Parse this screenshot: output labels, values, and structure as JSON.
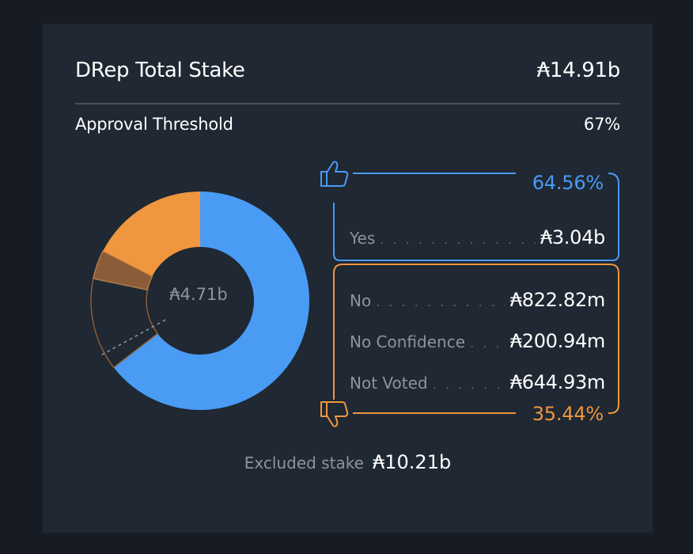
{
  "card": {
    "title": "DRep Total Stake",
    "total_stake": "₳14.91b",
    "threshold_label": "Approval Threshold",
    "threshold_value": "67%"
  },
  "donut": {
    "center_label": "₳4.71b"
  },
  "yes": {
    "percent": "64.56%",
    "items": [
      {
        "label": "Yes",
        "value": "₳3.04b"
      }
    ]
  },
  "no": {
    "percent": "35.44%",
    "items": [
      {
        "label": "No",
        "value": "₳822.82m"
      },
      {
        "label": "No Confidence",
        "value": "₳200.94m"
      },
      {
        "label": "Not Voted",
        "value": "₳644.93m"
      }
    ]
  },
  "excluded": {
    "label": "Excluded stake",
    "value": "₳10.21b"
  },
  "colors": {
    "background": "#171c24",
    "card": "#1f2833",
    "yes_blue": "#4a9bf4",
    "no_orange": "#f0963e",
    "no_confidence_brown": "#8a5d38",
    "muted_text": "#8c949e"
  },
  "icons": {
    "yes": "thumbs-up-icon",
    "no": "thumbs-down-icon"
  },
  "chart_data": {
    "type": "pie",
    "center_total": "₳4.71b",
    "categories": [
      "Yes",
      "No",
      "No Confidence",
      "Not Voted"
    ],
    "values": [
      3.04,
      0.82282,
      0.20094,
      0.64493
    ],
    "unit": "₳ billions",
    "colors": [
      "#4a9bf4",
      "#f0963e",
      "#8a5d38",
      "transparent-outline"
    ],
    "threshold_percent": 67,
    "yes_percent": 64.56,
    "no_percent": 35.44
  }
}
